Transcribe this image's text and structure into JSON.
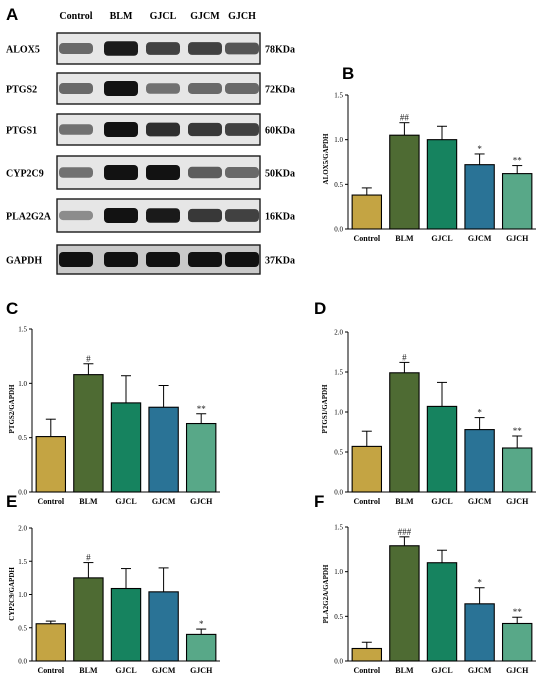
{
  "colors": {
    "Control": "#c4a443",
    "BLM": "#4e6b33",
    "GJCL": "#16835f",
    "GJCM": "#2a7396",
    "GJCH": "#58a888",
    "axis": "#000000"
  },
  "western_blot": {
    "panel_letter": "A",
    "lanes": [
      "Control",
      "BLM",
      "GJCL",
      "GJCM",
      "GJCH"
    ],
    "proteins": [
      {
        "name": "ALOX5",
        "size": "78KDa",
        "intensity": [
          0.55,
          0.95,
          0.75,
          0.75,
          0.65
        ]
      },
      {
        "name": "PTGS2",
        "size": "72KDa",
        "intensity": [
          0.55,
          1.0,
          0.5,
          0.55,
          0.55
        ]
      },
      {
        "name": "PTGS1",
        "size": "60KDa",
        "intensity": [
          0.5,
          1.0,
          0.85,
          0.8,
          0.75
        ]
      },
      {
        "name": "CYP2C9",
        "size": "50KDa",
        "intensity": [
          0.5,
          1.0,
          1.0,
          0.6,
          0.55
        ]
      },
      {
        "name": "PLA2G2A",
        "size": "16KDa",
        "intensity": [
          0.35,
          1.0,
          0.95,
          0.8,
          0.75
        ]
      },
      {
        "name": "GAPDH",
        "size": "37KDa",
        "intensity": [
          1.0,
          1.0,
          1.0,
          1.0,
          1.0
        ]
      }
    ]
  },
  "chart_data": [
    {
      "panel": "B",
      "type": "bar",
      "ylabel": "ALOX5/GAPDH",
      "categories": [
        "Control",
        "BLM",
        "GJCL",
        "GJCM",
        "GJCH"
      ],
      "values": [
        0.38,
        1.05,
        1.0,
        0.72,
        0.62
      ],
      "errors": [
        0.08,
        0.14,
        0.15,
        0.12,
        0.09
      ],
      "significance": [
        "",
        "##",
        "",
        "*",
        "**"
      ],
      "ylim": [
        0,
        1.5
      ],
      "yticks": [
        "0.0",
        "0.5",
        "1.0",
        "1.5"
      ],
      "tick_values": [
        0,
        0.5,
        1.0,
        1.5
      ]
    },
    {
      "panel": "C",
      "type": "bar",
      "ylabel": "PTGS2/GAPDH",
      "categories": [
        "Control",
        "BLM",
        "GJCL",
        "GJCM",
        "GJCH"
      ],
      "values": [
        0.51,
        1.08,
        0.82,
        0.78,
        0.63
      ],
      "errors": [
        0.16,
        0.1,
        0.25,
        0.2,
        0.09
      ],
      "significance": [
        "",
        "#",
        "",
        "",
        "**"
      ],
      "ylim": [
        0,
        1.5
      ],
      "yticks": [
        "0.0",
        "0.5",
        "1.0",
        "1.5"
      ],
      "tick_values": [
        0,
        0.5,
        1.0,
        1.5
      ]
    },
    {
      "panel": "D",
      "type": "bar",
      "ylabel": "PTGS1/GAPDH",
      "categories": [
        "Control",
        "BLM",
        "GJCL",
        "GJCM",
        "GJCH"
      ],
      "values": [
        0.57,
        1.49,
        1.07,
        0.78,
        0.55
      ],
      "errors": [
        0.19,
        0.13,
        0.3,
        0.15,
        0.15
      ],
      "significance": [
        "",
        "#",
        "",
        "*",
        "**"
      ],
      "ylim": [
        0,
        2.0
      ],
      "yticks": [
        "0.0",
        "0.5",
        "1.0",
        "1.5",
        "2.0"
      ],
      "tick_values": [
        0,
        0.5,
        1.0,
        1.5,
        2.0
      ]
    },
    {
      "panel": "E",
      "type": "bar",
      "ylabel": "CYP2C9/GAPDH",
      "categories": [
        "Control",
        "BLM",
        "GJCL",
        "GJCM",
        "GJCH"
      ],
      "values": [
        0.56,
        1.25,
        1.09,
        1.04,
        0.4
      ],
      "errors": [
        0.04,
        0.23,
        0.3,
        0.36,
        0.08
      ],
      "significance": [
        "",
        "#",
        "",
        "",
        "*"
      ],
      "ylim": [
        0,
        2.0
      ],
      "yticks": [
        "0.0",
        "0.5",
        "1.0",
        "1.5",
        "2.0"
      ],
      "tick_values": [
        0,
        0.5,
        1.0,
        1.5,
        2.0
      ]
    },
    {
      "panel": "F",
      "type": "bar",
      "ylabel": "PLA2G2A/GAPDH",
      "categories": [
        "Control",
        "BLM",
        "GJCL",
        "GJCM",
        "GJCH"
      ],
      "values": [
        0.14,
        1.29,
        1.1,
        0.64,
        0.42
      ],
      "errors": [
        0.07,
        0.1,
        0.14,
        0.18,
        0.07
      ],
      "significance": [
        "",
        "###",
        "",
        "*",
        "**"
      ],
      "ylim": [
        0,
        1.5
      ],
      "yticks": [
        "0.0",
        "0.5",
        "1.0",
        "1.5"
      ],
      "tick_values": [
        0,
        0.5,
        1.0,
        1.5
      ]
    }
  ]
}
